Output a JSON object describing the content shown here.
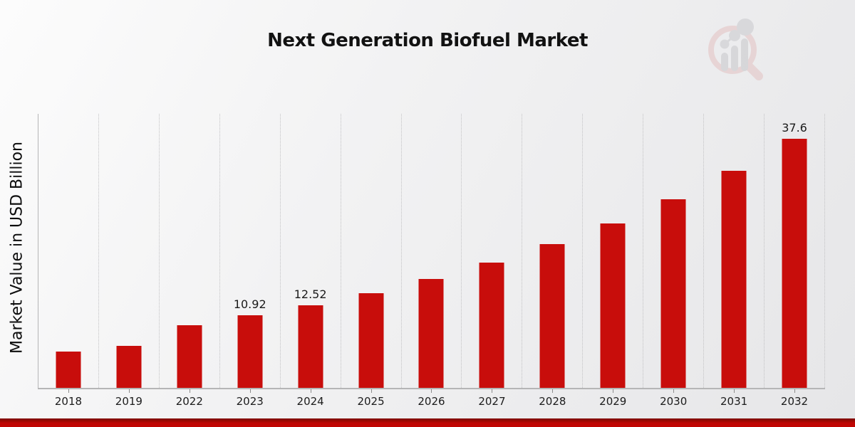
{
  "chart_data": {
    "type": "bar",
    "title": "Next Generation Biofuel Market",
    "xlabel": "",
    "ylabel": "Market Value in USD Billion",
    "categories": [
      "2018",
      "2019",
      "2022",
      "2023",
      "2024",
      "2025",
      "2026",
      "2027",
      "2028",
      "2029",
      "2030",
      "2031",
      "2032"
    ],
    "values": [
      5.49,
      6.3,
      9.52,
      10.92,
      12.52,
      14.36,
      16.48,
      18.91,
      21.69,
      24.89,
      28.55,
      32.77,
      37.6
    ],
    "data_labels": [
      "",
      "",
      "",
      "10.92",
      "12.52",
      "",
      "",
      "",
      "",
      "",
      "",
      "",
      "37.6"
    ],
    "ylim": [
      0,
      41.4
    ],
    "grid": "vertical-dotted",
    "legend": "none",
    "bar_color": "#c80d0b"
  },
  "branding": {
    "logo_icon": "magnifier-bar-chart-logo",
    "accent_red": "#c00502",
    "logo_pink": "#e3c2c2",
    "logo_gray": "#c6c6ca"
  }
}
